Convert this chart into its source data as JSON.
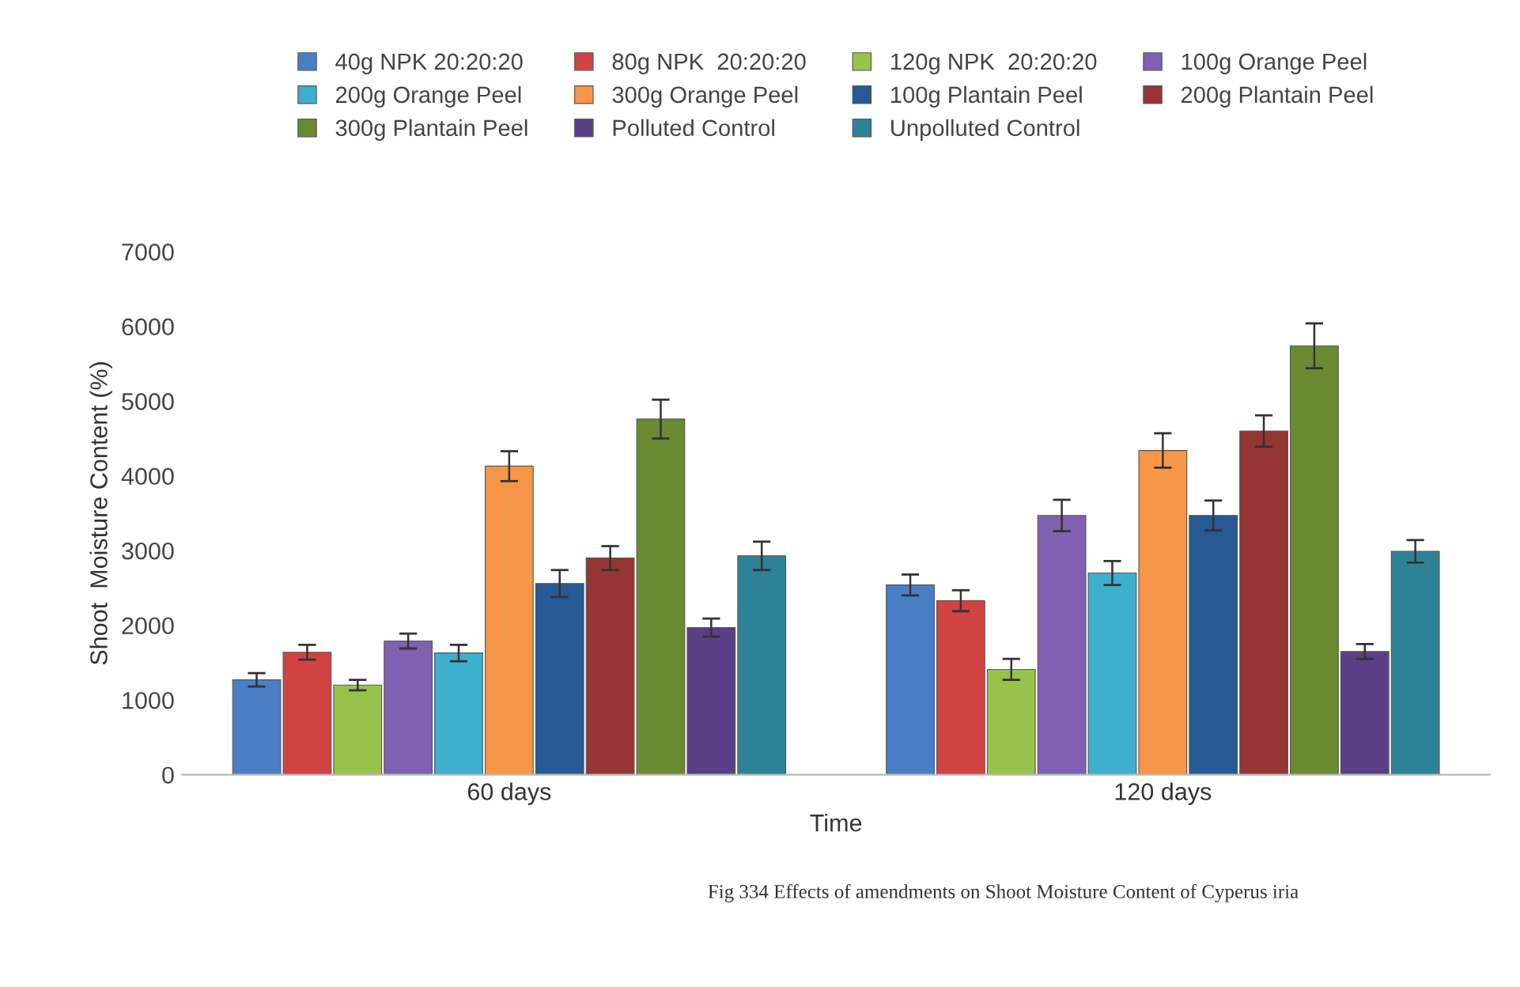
{
  "chart_data": {
    "type": "bar",
    "xlabel": "Time",
    "ylabel": "Shoot  Moisture Content (%)",
    "categories": [
      "60 days",
      "120 days"
    ],
    "series": [
      {
        "name": "40g NPK 20:20:20",
        "color": "#4a7fc6",
        "values": [
          1270,
          2540
        ],
        "errors": [
          90,
          140
        ]
      },
      {
        "name": "80g NPK  20:20:20",
        "color": "#cf4343",
        "values": [
          1640,
          2330
        ],
        "errors": [
          100,
          140
        ]
      },
      {
        "name": "120g NPK  20:20:20",
        "color": "#99c24d",
        "values": [
          1200,
          1410
        ],
        "errors": [
          70,
          140
        ]
      },
      {
        "name": "100g Orange Peel",
        "color": "#8060b0",
        "values": [
          1790,
          3470
        ],
        "errors": [
          100,
          210
        ]
      },
      {
        "name": "200g Orange Peel",
        "color": "#3cb0cc",
        "values": [
          1630,
          2700
        ],
        "errors": [
          110,
          160
        ]
      },
      {
        "name": "300g Orange Peel",
        "color": "#f79646",
        "values": [
          4130,
          4340
        ],
        "errors": [
          200,
          230
        ]
      },
      {
        "name": "100g Plantain Peel",
        "color": "#275a94",
        "values": [
          2560,
          3470
        ],
        "errors": [
          180,
          200
        ]
      },
      {
        "name": "200g Plantain Peel",
        "color": "#963634",
        "values": [
          2900,
          4600
        ],
        "errors": [
          160,
          210
        ]
      },
      {
        "name": "300g Plantain Peel",
        "color": "#6a8a32",
        "values": [
          4760,
          5740
        ],
        "errors": [
          260,
          300
        ]
      },
      {
        "name": "Polluted Control",
        "color": "#5b3f86",
        "values": [
          1970,
          1650
        ],
        "errors": [
          120,
          100
        ]
      },
      {
        "name": "Unpolluted Control",
        "color": "#2e8298",
        "values": [
          2930,
          2990
        ],
        "errors": [
          190,
          150
        ]
      }
    ],
    "ylim": [
      0,
      7000
    ],
    "yticks": [
      0,
      1000,
      2000,
      3000,
      4000,
      5000,
      6000,
      7000
    ],
    "legend": "top",
    "annotations": [
      "Fig 334 Effects of amendments on Shoot Moisture Content of Cyperus iria"
    ]
  }
}
